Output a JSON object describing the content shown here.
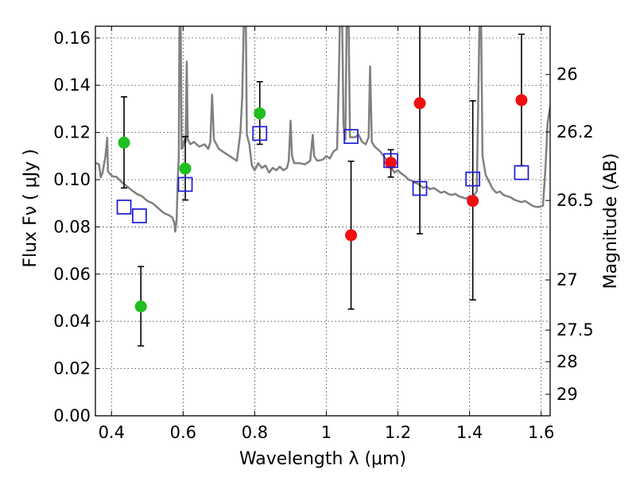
{
  "chart_data": {
    "type": "scatter",
    "xlabel": "Wavelength  λ (μm)",
    "ylabel": "Flux  Fν  ( μJy )",
    "ylabel_right": "Magnitude (AB)",
    "xlim": [
      0.355,
      1.625
    ],
    "ylim": [
      0.0,
      0.165
    ],
    "grid": true,
    "x_ticks": [
      0.4,
      0.6,
      0.8,
      1.0,
      1.2,
      1.4,
      1.6
    ],
    "x_tick_labels": [
      "0.4",
      "0.6",
      "0.8",
      "1",
      "1.2",
      "1.4",
      "1.6"
    ],
    "y_ticks": [
      0.0,
      0.02,
      0.04,
      0.06,
      0.08,
      0.1,
      0.12,
      0.14,
      0.16
    ],
    "y_tick_labels": [
      "0.00",
      "0.02",
      "0.04",
      "0.06",
      "0.08",
      "0.10",
      "0.12",
      "0.14",
      "0.16"
    ],
    "right_ticks": [
      {
        "label": "26",
        "mag": 26.0
      },
      {
        "label": "26.2",
        "mag": 26.2
      },
      {
        "label": "26.5",
        "mag": 26.5
      },
      {
        "label": "27",
        "mag": 27.0
      },
      {
        "label": "27.5",
        "mag": 27.5
      },
      {
        "label": "28",
        "mag": 28.0
      },
      {
        "label": "29",
        "mag": 29.0
      }
    ],
    "series": [
      {
        "marker": "filled-circle",
        "color": "#1ebf1e",
        "points": [
          {
            "x": 0.435,
            "y": 0.1157,
            "ylo": 0.0965,
            "yhi": 0.1351
          },
          {
            "x": 0.482,
            "y": 0.0463,
            "ylo": 0.0296,
            "yhi": 0.0632
          },
          {
            "x": 0.606,
            "y": 0.1047,
            "ylo": 0.0914,
            "yhi": 0.1183
          },
          {
            "x": 0.814,
            "y": 0.1281,
            "ylo": 0.115,
            "yhi": 0.1415
          }
        ]
      },
      {
        "marker": "filled-circle",
        "color": "#ee1111",
        "points": [
          {
            "x": 1.069,
            "y": 0.0765,
            "ylo": 0.0452,
            "yhi": 0.1078
          },
          {
            "x": 1.18,
            "y": 0.1072,
            "ylo": 0.1011,
            "yhi": 0.1127
          },
          {
            "x": 1.261,
            "y": 0.1324,
            "ylo": 0.0771,
            "yhi": 0.17
          },
          {
            "x": 1.409,
            "y": 0.091,
            "ylo": 0.0491,
            "yhi": 0.1334
          },
          {
            "x": 1.545,
            "y": 0.1337,
            "ylo": 0.1059,
            "yhi": 0.1616
          }
        ]
      },
      {
        "marker": "open-square",
        "color": "#1a1ad6",
        "points": [
          {
            "x": 0.435,
            "y": 0.0884
          },
          {
            "x": 0.478,
            "y": 0.0847
          },
          {
            "x": 0.606,
            "y": 0.098
          },
          {
            "x": 0.814,
            "y": 0.1196
          },
          {
            "x": 1.069,
            "y": 0.1183
          },
          {
            "x": 1.18,
            "y": 0.1081
          },
          {
            "x": 1.261,
            "y": 0.0963
          },
          {
            "x": 1.409,
            "y": 0.1003
          },
          {
            "x": 1.545,
            "y": 0.103
          }
        ]
      },
      {
        "marker": "line",
        "color": "#808080",
        "points": [
          [
            0.355,
            0.1071
          ],
          [
            0.365,
            0.1065
          ],
          [
            0.37,
            0.101
          ],
          [
            0.375,
            0.103
          ],
          [
            0.383,
            0.1098
          ],
          [
            0.388,
            0.1178
          ],
          [
            0.39,
            0.1035
          ],
          [
            0.398,
            0.102
          ],
          [
            0.406,
            0.1013
          ],
          [
            0.413,
            0.1013
          ],
          [
            0.42,
            0.1003
          ],
          [
            0.428,
            0.099
          ],
          [
            0.44,
            0.0976
          ],
          [
            0.455,
            0.0957
          ],
          [
            0.47,
            0.094
          ],
          [
            0.485,
            0.093
          ],
          [
            0.5,
            0.091
          ],
          [
            0.515,
            0.09
          ],
          [
            0.53,
            0.088
          ],
          [
            0.545,
            0.086
          ],
          [
            0.56,
            0.085
          ],
          [
            0.57,
            0.084
          ],
          [
            0.575,
            0.082
          ],
          [
            0.578,
            0.078
          ],
          [
            0.582,
            0.083
          ],
          [
            0.585,
            0.1
          ],
          [
            0.588,
            0.11
          ],
          [
            0.59,
            0.17
          ],
          [
            0.593,
            0.17
          ],
          [
            0.596,
            0.113
          ],
          [
            0.6,
            0.114
          ],
          [
            0.604,
            0.117
          ],
          [
            0.607,
            0.116
          ],
          [
            0.61,
            0.15
          ],
          [
            0.613,
            0.117
          ],
          [
            0.62,
            0.115
          ],
          [
            0.63,
            0.116
          ],
          [
            0.645,
            0.114
          ],
          [
            0.66,
            0.115
          ],
          [
            0.67,
            0.113
          ],
          [
            0.676,
            0.116
          ],
          [
            0.681,
            0.136
          ],
          [
            0.686,
            0.117
          ],
          [
            0.7,
            0.113
          ],
          [
            0.72,
            0.111
          ],
          [
            0.74,
            0.109
          ],
          [
            0.75,
            0.108
          ],
          [
            0.76,
            0.12
          ],
          [
            0.765,
            0.135
          ],
          [
            0.77,
            0.17
          ],
          [
            0.775,
            0.17
          ],
          [
            0.778,
            0.119
          ],
          [
            0.785,
            0.115
          ],
          [
            0.792,
            0.106
          ],
          [
            0.8,
            0.104
          ],
          [
            0.81,
            0.107
          ],
          [
            0.82,
            0.105
          ],
          [
            0.83,
            0.106
          ],
          [
            0.84,
            0.103
          ],
          [
            0.85,
            0.105
          ],
          [
            0.86,
            0.104
          ],
          [
            0.87,
            0.1055
          ],
          [
            0.88,
            0.104
          ],
          [
            0.89,
            0.105
          ],
          [
            0.895,
            0.108
          ],
          [
            0.9,
            0.125
          ],
          [
            0.904,
            0.11
          ],
          [
            0.91,
            0.107
          ],
          [
            0.925,
            0.107
          ],
          [
            0.94,
            0.1065
          ],
          [
            0.955,
            0.108
          ],
          [
            0.962,
            0.119
          ],
          [
            0.966,
            0.11
          ],
          [
            0.975,
            0.108
          ],
          [
            0.99,
            0.1085
          ],
          [
            1.0,
            0.11
          ],
          [
            1.01,
            0.109
          ],
          [
            1.02,
            0.112
          ],
          [
            1.03,
            0.113
          ],
          [
            1.035,
            0.145
          ],
          [
            1.038,
            0.17
          ],
          [
            1.044,
            0.17
          ],
          [
            1.048,
            0.123
          ],
          [
            1.053,
            0.117
          ],
          [
            1.057,
            0.17
          ],
          [
            1.062,
            0.17
          ],
          [
            1.066,
            0.118
          ],
          [
            1.08,
            0.118
          ],
          [
            1.09,
            0.119
          ],
          [
            1.1,
            0.116
          ],
          [
            1.11,
            0.115
          ],
          [
            1.118,
            0.118
          ],
          [
            1.122,
            0.148
          ],
          [
            1.127,
            0.116
          ],
          [
            1.135,
            0.114
          ],
          [
            1.15,
            0.112
          ],
          [
            1.16,
            0.11
          ],
          [
            1.17,
            0.108
          ],
          [
            1.18,
            0.1055
          ],
          [
            1.19,
            0.103
          ],
          [
            1.2,
            0.104
          ],
          [
            1.21,
            0.1025
          ],
          [
            1.22,
            0.1015
          ],
          [
            1.23,
            0.1
          ],
          [
            1.24,
            0.0995
          ],
          [
            1.25,
            0.0985
          ],
          [
            1.26,
            0.098
          ],
          [
            1.27,
            0.0965
          ],
          [
            1.28,
            0.097
          ],
          [
            1.29,
            0.096
          ],
          [
            1.3,
            0.0965
          ],
          [
            1.31,
            0.0955
          ],
          [
            1.32,
            0.0945
          ],
          [
            1.33,
            0.095
          ],
          [
            1.34,
            0.094
          ],
          [
            1.35,
            0.0935
          ],
          [
            1.36,
            0.094
          ],
          [
            1.37,
            0.093
          ],
          [
            1.38,
            0.0925
          ],
          [
            1.39,
            0.092
          ],
          [
            1.4,
            0.093
          ],
          [
            1.405,
            0.092
          ],
          [
            1.41,
            0.093
          ],
          [
            1.42,
            0.095
          ],
          [
            1.428,
            0.17
          ],
          [
            1.432,
            0.17
          ],
          [
            1.436,
            0.11
          ],
          [
            1.445,
            0.102
          ],
          [
            1.455,
            0.099
          ],
          [
            1.465,
            0.096
          ],
          [
            1.475,
            0.0945
          ],
          [
            1.485,
            0.095
          ],
          [
            1.495,
            0.0935
          ],
          [
            1.505,
            0.093
          ],
          [
            1.515,
            0.0925
          ],
          [
            1.525,
            0.0915
          ],
          [
            1.535,
            0.091
          ],
          [
            1.545,
            0.0905
          ],
          [
            1.555,
            0.091
          ],
          [
            1.565,
            0.09
          ],
          [
            1.575,
            0.089
          ],
          [
            1.585,
            0.0885
          ],
          [
            1.595,
            0.0885
          ],
          [
            1.605,
            0.089
          ],
          [
            1.612,
            0.105
          ],
          [
            1.618,
            0.124
          ],
          [
            1.625,
            0.131
          ]
        ]
      }
    ]
  }
}
